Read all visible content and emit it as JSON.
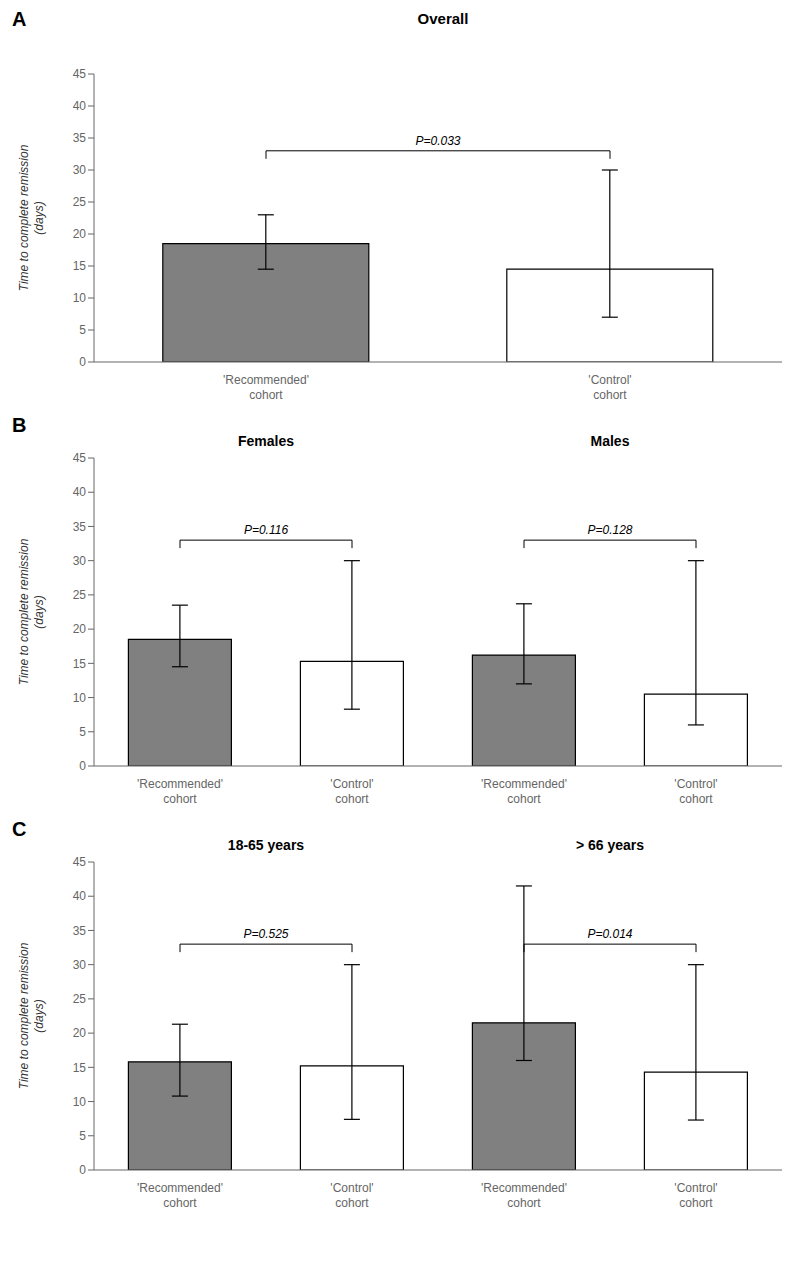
{
  "chart_data": [
    {
      "type": "bar",
      "panel_label": "A",
      "title": "Overall",
      "categories": [
        "'Recommended'\ncohort",
        "'Control'\ncohort"
      ],
      "values": [
        18.5,
        14.5
      ],
      "err_up": [
        4.5,
        15.5
      ],
      "err_down": [
        4.0,
        7.5
      ],
      "colors": [
        "#808080",
        "#ffffff"
      ],
      "ylabel": "Time to complete remission\n(days)",
      "ylim": [
        0,
        45
      ],
      "yticks": [
        0,
        5,
        10,
        15,
        20,
        25,
        30,
        35,
        40,
        45
      ],
      "annotations": [
        {
          "text": "P=0.033",
          "between": [
            0,
            1
          ],
          "y": 33
        }
      ]
    },
    {
      "type": "bar",
      "panel_label": "B",
      "categories": [
        "'Recommended'\ncohort",
        "'Control'\ncohort",
        "'Recommended'\ncohort",
        "'Control'\ncohort"
      ],
      "values": [
        18.5,
        15.3,
        16.2,
        10.5
      ],
      "err_up": [
        5.0,
        14.7,
        7.5,
        19.5
      ],
      "err_down": [
        4.0,
        7.0,
        4.2,
        4.5
      ],
      "colors": [
        "#808080",
        "#ffffff",
        "#808080",
        "#ffffff"
      ],
      "ylabel": "Time to complete remission\n(days)",
      "ylim": [
        0,
        45
      ],
      "yticks": [
        0,
        5,
        10,
        15,
        20,
        25,
        30,
        35,
        40,
        45
      ],
      "subtitles": [
        {
          "text": "Females",
          "span": [
            0,
            1
          ]
        },
        {
          "text": "Males",
          "span": [
            2,
            3
          ]
        }
      ],
      "annotations": [
        {
          "text": "P=0.116",
          "between": [
            0,
            1
          ],
          "y": 33
        },
        {
          "text": "P=0.128",
          "between": [
            2,
            3
          ],
          "y": 33
        }
      ]
    },
    {
      "type": "bar",
      "panel_label": "C",
      "categories": [
        "'Recommended'\ncohort",
        "'Control'\ncohort",
        "'Recommended'\ncohort",
        "'Control'\ncohort"
      ],
      "values": [
        15.8,
        15.2,
        21.5,
        14.3
      ],
      "err_up": [
        5.5,
        14.8,
        20.0,
        15.7
      ],
      "err_down": [
        5.0,
        7.8,
        5.5,
        7.0
      ],
      "colors": [
        "#808080",
        "#ffffff",
        "#808080",
        "#ffffff"
      ],
      "ylabel": "Time to complete remission\n(days)",
      "ylim": [
        0,
        45
      ],
      "yticks": [
        0,
        5,
        10,
        15,
        20,
        25,
        30,
        35,
        40,
        45
      ],
      "subtitles": [
        {
          "text": "18-65 years",
          "span": [
            0,
            1
          ]
        },
        {
          "text": "> 66 years",
          "span": [
            2,
            3
          ]
        }
      ],
      "annotations": [
        {
          "text": "P=0.525",
          "between": [
            0,
            1
          ],
          "y": 33
        },
        {
          "text": "P=0.014",
          "between": [
            2,
            3
          ],
          "y": 33
        }
      ]
    }
  ]
}
